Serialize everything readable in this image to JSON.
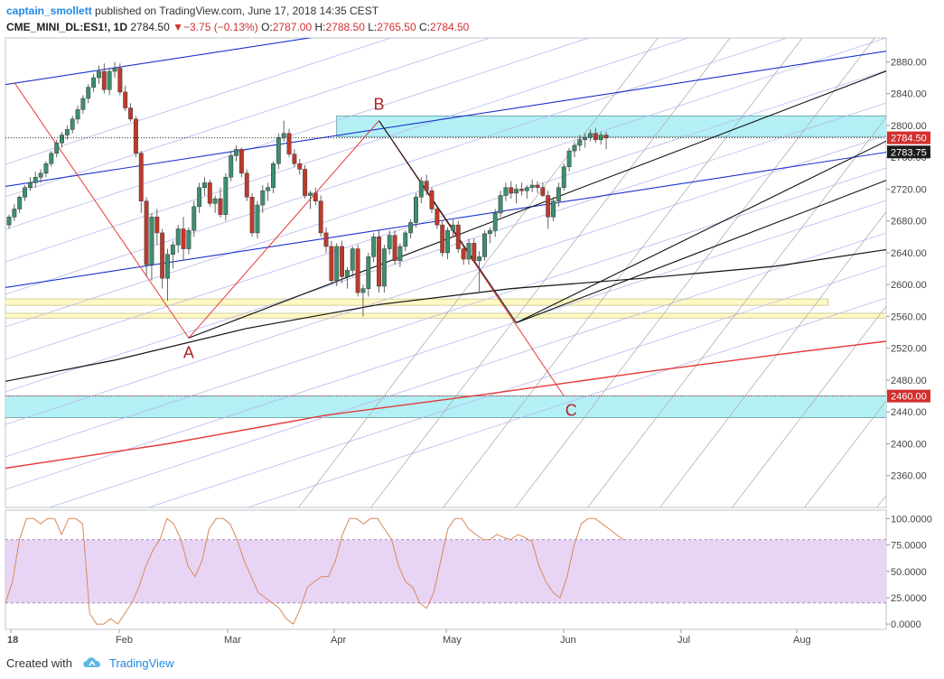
{
  "header": {
    "author": "captain_smollett",
    "published": " published on TradingView.com, June 17, 2018 14:35 CEST",
    "symbol": "CME_MINI_DL:ES1!, 1D",
    "last": "2784.50",
    "change": "−3.75 (−0.13%)",
    "ohlc": [
      {
        "k": "O:",
        "v": "2787.00"
      },
      {
        "k": "H:",
        "v": "2788.50"
      },
      {
        "k": "L:",
        "v": "2765.50"
      },
      {
        "k": "C:",
        "v": "2784.50"
      }
    ]
  },
  "footer": {
    "created_with": "Created with",
    "brand": "TradingView"
  },
  "colors": {
    "up": "#3d8f6e",
    "down": "#c0392b",
    "zone_cyan": "#b2f0f5",
    "zone_yellow": "#fff9c4",
    "rsi_band": "#e8d5f5",
    "rsi_line": "#d9895a",
    "trend_red": "#e53935",
    "pitchfork_blue": "#1a33cc",
    "fan_gray": "#b0b0b0",
    "fan_lavender": "#b8b8ee"
  },
  "chart_data": [
    {
      "type": "candlestick",
      "symbol": "CME_MINI_DL:ES1!",
      "interval": "1D",
      "ylim": [
        2320,
        2910
      ],
      "y_ticks": [
        "2880.00",
        "2840.00",
        "2800.00",
        "2760.00",
        "2720.00",
        "2680.00",
        "2640.00",
        "2600.00",
        "2560.00",
        "2520.00",
        "2480.00",
        "2440.00",
        "2400.00",
        "2360.00"
      ],
      "x_ticks": [
        "18",
        "Feb",
        "Mar",
        "Apr",
        "May",
        "Jun",
        "Jul",
        "Aug"
      ],
      "price_labels": [
        {
          "value": 2784.5,
          "text": "2784.50",
          "style": "red"
        },
        {
          "value": 2783.75,
          "text": "2783.75",
          "style": "dark"
        },
        {
          "value": 2460.0,
          "text": "2460.00",
          "style": "red"
        }
      ],
      "points": [
        {
          "label": "A",
          "day": 34,
          "price": 2533
        },
        {
          "label": "B",
          "day": 70,
          "price": 2806
        },
        {
          "label": "C",
          "day": 105,
          "price": 2460
        }
      ],
      "zones": [
        {
          "color": "cyan",
          "x1": 62,
          "x2": 240,
          "p1": 2812,
          "p2": 2786
        },
        {
          "color": "cyan",
          "x1": -3,
          "x2": 202,
          "p1": 2460,
          "p2": 2433
        },
        {
          "color": "yellow",
          "x1": -3,
          "x2": 155,
          "p1": 2582,
          "p2": 2574
        },
        {
          "color": "yellow",
          "x1": -3,
          "x2": 175,
          "p1": 2564,
          "p2": 2558
        }
      ],
      "series": [
        {
          "name": "ES1!",
          "candles": [
            [
              2675,
              2688,
              2670,
              2685
            ],
            [
              2685,
              2701,
              2680,
              2695
            ],
            [
              2695,
              2712,
              2690,
              2710
            ],
            [
              2710,
              2725,
              2705,
              2722
            ],
            [
              2722,
              2735,
              2718,
              2728
            ],
            [
              2728,
              2742,
              2722,
              2735
            ],
            [
              2735,
              2745,
              2728,
              2740
            ],
            [
              2740,
              2755,
              2735,
              2752
            ],
            [
              2752,
              2768,
              2748,
              2765
            ],
            [
              2765,
              2782,
              2760,
              2778
            ],
            [
              2778,
              2792,
              2772,
              2788
            ],
            [
              2788,
              2800,
              2782,
              2795
            ],
            [
              2795,
              2812,
              2790,
              2808
            ],
            [
              2808,
              2825,
              2802,
              2820
            ],
            [
              2820,
              2838,
              2815,
              2834
            ],
            [
              2834,
              2852,
              2828,
              2848
            ],
            [
              2848,
              2865,
              2842,
              2860
            ],
            [
              2860,
              2875,
              2852,
              2868
            ],
            [
              2868,
              2878,
              2840,
              2845
            ],
            [
              2845,
              2872,
              2838,
              2868
            ],
            [
              2868,
              2880,
              2860,
              2872
            ],
            [
              2872,
              2878,
              2838,
              2842
            ],
            [
              2842,
              2850,
              2818,
              2822
            ],
            [
              2822,
              2828,
              2805,
              2808
            ],
            [
              2808,
              2812,
              2760,
              2765
            ],
            [
              2765,
              2768,
              2690,
              2705
            ],
            [
              2705,
              2710,
              2610,
              2625
            ],
            [
              2625,
              2690,
              2605,
              2685
            ],
            [
              2685,
              2695,
              2650,
              2665
            ],
            [
              2665,
              2670,
              2595,
              2608
            ],
            [
              2608,
              2645,
              2580,
              2638
            ],
            [
              2638,
              2655,
              2620,
              2650
            ],
            [
              2650,
              2675,
              2640,
              2670
            ],
            [
              2670,
              2685,
              2630,
              2645
            ],
            [
              2645,
              2672,
              2638,
              2668
            ],
            [
              2668,
              2705,
              2660,
              2698
            ],
            [
              2698,
              2728,
              2690,
              2722
            ],
            [
              2722,
              2735,
              2712,
              2728
            ],
            [
              2728,
              2732,
              2698,
              2702
            ],
            [
              2702,
              2712,
              2690,
              2708
            ],
            [
              2708,
              2722,
              2684,
              2688
            ],
            [
              2688,
              2740,
              2680,
              2735
            ],
            [
              2735,
              2768,
              2730,
              2762
            ],
            [
              2762,
              2775,
              2755,
              2770
            ],
            [
              2770,
              2772,
              2735,
              2740
            ],
            [
              2740,
              2745,
              2705,
              2710
            ],
            [
              2710,
              2715,
              2660,
              2665
            ],
            [
              2665,
              2705,
              2658,
              2700
            ],
            [
              2700,
              2725,
              2690,
              2718
            ],
            [
              2718,
              2728,
              2705,
              2722
            ],
            [
              2722,
              2755,
              2715,
              2752
            ],
            [
              2752,
              2790,
              2745,
              2785
            ],
            [
              2785,
              2806,
              2780,
              2790
            ],
            [
              2790,
              2796,
              2760,
              2764
            ],
            [
              2764,
              2770,
              2748,
              2752
            ],
            [
              2752,
              2758,
              2738,
              2745
            ],
            [
              2745,
              2750,
              2708,
              2712
            ],
            [
              2712,
              2718,
              2695,
              2715
            ],
            [
              2715,
              2722,
              2700,
              2705
            ],
            [
              2705,
              2712,
              2660,
              2665
            ],
            [
              2665,
              2672,
              2640,
              2648
            ],
            [
              2648,
              2655,
              2600,
              2605
            ],
            [
              2605,
              2652,
              2598,
              2648
            ],
            [
              2648,
              2655,
              2602,
              2610
            ],
            [
              2610,
              2622,
              2595,
              2618
            ],
            [
              2618,
              2648,
              2610,
              2645
            ],
            [
              2645,
              2650,
              2585,
              2590
            ],
            [
              2590,
              2600,
              2560,
              2595
            ],
            [
              2595,
              2640,
              2585,
              2635
            ],
            [
              2635,
              2665,
              2628,
              2660
            ],
            [
              2660,
              2668,
              2590,
              2598
            ],
            [
              2598,
              2650,
              2590,
              2645
            ],
            [
              2645,
              2668,
              2638,
              2662
            ],
            [
              2662,
              2668,
              2625,
              2630
            ],
            [
              2630,
              2652,
              2622,
              2648
            ],
            [
              2648,
              2668,
              2642,
              2665
            ],
            [
              2665,
              2682,
              2658,
              2678
            ],
            [
              2678,
              2715,
              2672,
              2710
            ],
            [
              2710,
              2735,
              2702,
              2730
            ],
            [
              2730,
              2738,
              2712,
              2718
            ],
            [
              2718,
              2722,
              2690,
              2695
            ],
            [
              2695,
              2700,
              2670,
              2675
            ],
            [
              2675,
              2680,
              2635,
              2640
            ],
            [
              2640,
              2672,
              2632,
              2668
            ],
            [
              2668,
              2682,
              2660,
              2675
            ],
            [
              2675,
              2680,
              2640,
              2645
            ],
            [
              2645,
              2650,
              2625,
              2632
            ],
            [
              2632,
              2658,
              2625,
              2652
            ],
            [
              2652,
              2658,
              2628,
              2630
            ],
            [
              2630,
              2642,
              2590,
              2635
            ],
            [
              2635,
              2668,
              2630,
              2664
            ],
            [
              2664,
              2672,
              2652,
              2668
            ],
            [
              2668,
              2695,
              2660,
              2690
            ],
            [
              2690,
              2718,
              2685,
              2712
            ],
            [
              2712,
              2728,
              2705,
              2722
            ],
            [
              2722,
              2730,
              2708,
              2715
            ],
            [
              2715,
              2726,
              2702,
              2720
            ],
            [
              2720,
              2728,
              2712,
              2718
            ],
            [
              2718,
              2725,
              2708,
              2722
            ],
            [
              2722,
              2732,
              2716,
              2725
            ],
            [
              2725,
              2730,
              2715,
              2722
            ],
            [
              2722,
              2728,
              2710,
              2712
            ],
            [
              2712,
              2718,
              2670,
              2685
            ],
            [
              2685,
              2710,
              2680,
              2705
            ],
            [
              2705,
              2728,
              2698,
              2722
            ],
            [
              2722,
              2752,
              2718,
              2748
            ],
            [
              2748,
              2772,
              2742,
              2768
            ],
            [
              2768,
              2780,
              2760,
              2775
            ],
            [
              2775,
              2788,
              2768,
              2782
            ],
            [
              2782,
              2790,
              2772,
              2785
            ],
            [
              2785,
              2795,
              2780,
              2790
            ],
            [
              2790,
              2797,
              2778,
              2782
            ],
            [
              2782,
              2792,
              2776,
              2788
            ],
            [
              2788,
              2792,
              2770,
              2784.5
            ]
          ]
        },
        {
          "name": "SMA 200",
          "points": [
            [
              -5,
              2473
            ],
            [
              20,
              2505
            ],
            [
              45,
              2545
            ],
            [
              70,
              2575
            ],
            [
              95,
              2595
            ],
            [
              120,
              2608
            ],
            [
              145,
              2623
            ],
            [
              165,
              2643
            ],
            [
              180,
              2655
            ]
          ]
        },
        {
          "name": "Long-term uptrend",
          "points": [
            [
              -5,
              2365
            ],
            [
              30,
              2400
            ],
            [
              60,
              2436
            ],
            [
              90,
              2462
            ],
            [
              120,
              2490
            ],
            [
              150,
              2516
            ],
            [
              180,
              2540
            ]
          ]
        }
      ],
      "trendlines": [
        {
          "from": [
            34,
            2533
          ],
          "to": [
            70,
            2806
          ]
        },
        {
          "from": [
            70,
            2806
          ],
          "to": [
            105,
            2460
          ]
        },
        {
          "from": [
            1,
            2854
          ],
          "to": [
            34,
            2533
          ]
        },
        {
          "from": [
            34,
            2533
          ],
          "to": [
            206,
            2970
          ]
        },
        {
          "from": [
            70,
            2806
          ],
          "to": [
            96,
            2552
          ]
        },
        {
          "from": [
            96,
            2552
          ],
          "to": [
            232,
            2900
          ]
        },
        {
          "from": [
            96,
            2552
          ],
          "to": [
            218,
            2950
          ]
        }
      ],
      "pitchfork": {
        "lines": [
          {
            "from": [
              -5,
              2847
            ],
            "to": [
              250,
              3107
            ]
          },
          {
            "from": [
              -5,
              2719
            ],
            "to": [
              250,
              2979
            ]
          },
          {
            "from": [
              -5,
              2592
            ],
            "to": [
              250,
              2852
            ]
          }
        ]
      }
    },
    {
      "type": "line",
      "name": "Stochastic RSI",
      "ylim": [
        -5,
        108
      ],
      "y_ticks": [
        "100.0000",
        "75.0000",
        "50.0000",
        "25.0000",
        "0.0000"
      ],
      "band": [
        20,
        80
      ],
      "values": [
        20,
        40,
        80,
        100,
        100,
        95,
        100,
        100,
        85,
        100,
        100,
        95,
        10,
        0,
        0,
        5,
        0,
        10,
        20,
        35,
        55,
        70,
        80,
        100,
        95,
        80,
        55,
        45,
        60,
        90,
        100,
        100,
        95,
        80,
        60,
        45,
        30,
        25,
        20,
        15,
        5,
        0,
        15,
        35,
        40,
        45,
        45,
        60,
        85,
        100,
        100,
        95,
        100,
        100,
        90,
        80,
        55,
        40,
        35,
        20,
        15,
        30,
        60,
        90,
        100,
        100,
        90,
        85,
        80,
        80,
        85,
        82,
        80,
        85,
        82,
        78,
        55,
        40,
        30,
        25,
        45,
        75,
        95,
        100,
        100,
        95,
        90,
        85,
        80
      ]
    }
  ]
}
